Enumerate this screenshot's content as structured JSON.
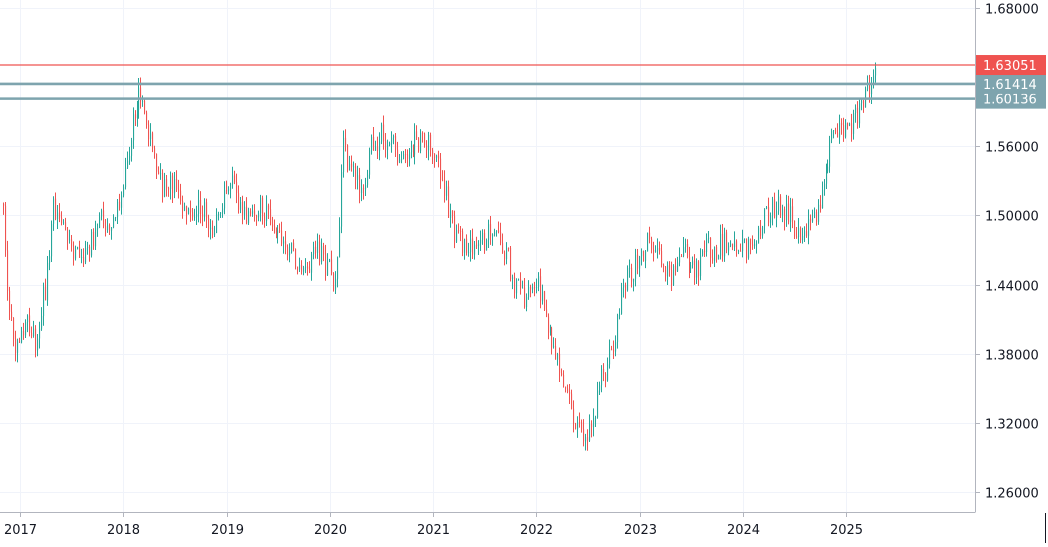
{
  "chart_data": {
    "type": "candlestick",
    "title": "",
    "xlabel": "",
    "ylabel": "",
    "x_ticks": [
      "2017",
      "2018",
      "2019",
      "2020",
      "2021",
      "2022",
      "2023",
      "2024",
      "2025"
    ],
    "y_ticks": [
      "1.68000",
      "1.56000",
      "1.50000",
      "1.44000",
      "1.38000",
      "1.32000",
      "1.26000"
    ],
    "ylim": [
      1.243,
      1.68
    ],
    "grid": true,
    "colors": {
      "up": "#26a69a",
      "down": "#ef5350",
      "grid": "#f0f3fa",
      "axis": "#b2b5be",
      "text": "#131722"
    },
    "price_lines": [
      {
        "value": 1.63051,
        "label": "1.63051",
        "color": "#ef5350"
      },
      {
        "value": 1.61414,
        "label": "1.61414",
        "color": "#7ea4ae"
      },
      {
        "value": 1.60136,
        "label": "1.60136",
        "color": "#7ea4ae"
      }
    ],
    "series_path": [
      [
        2016.84,
        1.51
      ],
      [
        2016.88,
        1.43
      ],
      [
        2016.95,
        1.39
      ],
      [
        2017.05,
        1.41
      ],
      [
        2017.15,
        1.39
      ],
      [
        2017.25,
        1.44
      ],
      [
        2017.32,
        1.51
      ],
      [
        2017.42,
        1.49
      ],
      [
        2017.5,
        1.47
      ],
      [
        2017.6,
        1.46
      ],
      [
        2017.7,
        1.48
      ],
      [
        2017.8,
        1.5
      ],
      [
        2017.9,
        1.49
      ],
      [
        2018.0,
        1.53
      ],
      [
        2018.08,
        1.58
      ],
      [
        2018.15,
        1.61
      ],
      [
        2018.22,
        1.58
      ],
      [
        2018.3,
        1.55
      ],
      [
        2018.38,
        1.52
      ],
      [
        2018.45,
        1.53
      ],
      [
        2018.55,
        1.51
      ],
      [
        2018.65,
        1.5
      ],
      [
        2018.75,
        1.51
      ],
      [
        2018.85,
        1.49
      ],
      [
        2018.95,
        1.51
      ],
      [
        2019.05,
        1.53
      ],
      [
        2019.12,
        1.51
      ],
      [
        2019.2,
        1.5
      ],
      [
        2019.3,
        1.51
      ],
      [
        2019.4,
        1.5
      ],
      [
        2019.5,
        1.49
      ],
      [
        2019.6,
        1.47
      ],
      [
        2019.7,
        1.46
      ],
      [
        2019.8,
        1.46
      ],
      [
        2019.9,
        1.47
      ],
      [
        2020.0,
        1.45
      ],
      [
        2020.05,
        1.44
      ],
      [
        2020.08,
        1.48
      ],
      [
        2020.12,
        1.56
      ],
      [
        2020.2,
        1.54
      ],
      [
        2020.3,
        1.52
      ],
      [
        2020.4,
        1.56
      ],
      [
        2020.5,
        1.57
      ],
      [
        2020.6,
        1.56
      ],
      [
        2020.7,
        1.55
      ],
      [
        2020.8,
        1.56
      ],
      [
        2020.9,
        1.57
      ],
      [
        2021.0,
        1.55
      ],
      [
        2021.1,
        1.53
      ],
      [
        2021.18,
        1.49
      ],
      [
        2021.3,
        1.47
      ],
      [
        2021.42,
        1.48
      ],
      [
        2021.5,
        1.48
      ],
      [
        2021.6,
        1.49
      ],
      [
        2021.7,
        1.47
      ],
      [
        2021.78,
        1.44
      ],
      [
        2021.88,
        1.43
      ],
      [
        2022.0,
        1.44
      ],
      [
        2022.08,
        1.42
      ],
      [
        2022.15,
        1.38
      ],
      [
        2022.22,
        1.37
      ],
      [
        2022.3,
        1.35
      ],
      [
        2022.38,
        1.32
      ],
      [
        2022.45,
        1.31
      ],
      [
        2022.52,
        1.31
      ],
      [
        2022.6,
        1.35
      ],
      [
        2022.68,
        1.37
      ],
      [
        2022.75,
        1.39
      ],
      [
        2022.82,
        1.43
      ],
      [
        2022.9,
        1.45
      ],
      [
        2023.0,
        1.46
      ],
      [
        2023.08,
        1.48
      ],
      [
        2023.15,
        1.47
      ],
      [
        2023.22,
        1.46
      ],
      [
        2023.3,
        1.45
      ],
      [
        2023.38,
        1.47
      ],
      [
        2023.48,
        1.46
      ],
      [
        2023.55,
        1.45
      ],
      [
        2023.65,
        1.47
      ],
      [
        2023.75,
        1.47
      ],
      [
        2023.85,
        1.48
      ],
      [
        2023.95,
        1.47
      ],
      [
        2024.05,
        1.47
      ],
      [
        2024.15,
        1.49
      ],
      [
        2024.25,
        1.5
      ],
      [
        2024.35,
        1.51
      ],
      [
        2024.45,
        1.5
      ],
      [
        2024.55,
        1.48
      ],
      [
        2024.62,
        1.49
      ],
      [
        2024.72,
        1.5
      ],
      [
        2024.8,
        1.54
      ],
      [
        2024.88,
        1.58
      ],
      [
        2024.95,
        1.57
      ],
      [
        2025.05,
        1.58
      ],
      [
        2025.12,
        1.59
      ],
      [
        2025.2,
        1.61
      ],
      [
        2025.3,
        1.63
      ]
    ]
  }
}
